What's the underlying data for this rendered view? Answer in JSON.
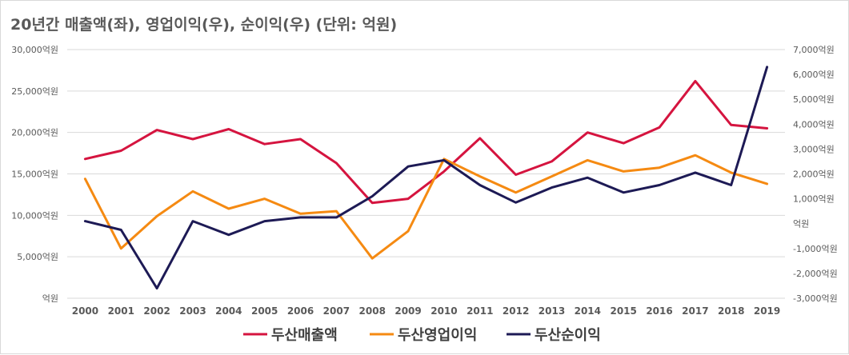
{
  "chart_data": {
    "type": "line",
    "title": "20년간 매출액(좌), 영업이익(우), 순이익(우) (단위: 억원)",
    "categories": [
      "2000",
      "2001",
      "2002",
      "2003",
      "2004",
      "2005",
      "2006",
      "2007",
      "2008",
      "2009",
      "2010",
      "2011",
      "2012",
      "2013",
      "2014",
      "2015",
      "2016",
      "2017",
      "2018",
      "2019"
    ],
    "y_left": {
      "min": 0,
      "max": 30000,
      "tick_labels": [
        "억원",
        "5,000억원",
        "10,000억원",
        "15,000억원",
        "20,000억원",
        "25,000억원",
        "30,000억원"
      ],
      "tick_values": [
        0,
        5000,
        10000,
        15000,
        20000,
        25000,
        30000
      ]
    },
    "y_right": {
      "min": -3000,
      "max": 7000,
      "tick_labels": [
        "-3,000억원",
        "-2,000억원",
        "-1,000억원",
        "억원",
        "1,000억원",
        "2,000억원",
        "3,000억원",
        "4,000억원",
        "5,000억원",
        "6,000억원",
        "7,000억원"
      ],
      "tick_values": [
        -3000,
        -2000,
        -1000,
        0,
        1000,
        2000,
        3000,
        4000,
        5000,
        6000,
        7000
      ]
    },
    "grid": true,
    "legend_position": "bottom",
    "series": [
      {
        "name": "두산매출액",
        "axis": "left",
        "color": "#d5143f",
        "values": [
          16800,
          17800,
          20300,
          19200,
          20400,
          18600,
          19200,
          16300,
          11500,
          12000,
          15300,
          19300,
          14900,
          16500,
          20000,
          18700,
          20600,
          26200,
          20900,
          20500
        ]
      },
      {
        "name": "두산영업이익",
        "axis": "right",
        "color": "#f58a12",
        "values": [
          1800,
          -1000,
          300,
          1300,
          600,
          1000,
          400,
          500,
          -1400,
          -300,
          2600,
          1900,
          1250,
          1900,
          2550,
          2100,
          2250,
          2750,
          2050,
          1600
        ]
      },
      {
        "name": "두산순이익",
        "axis": "right",
        "color": "#1d1a55",
        "values": [
          100,
          -250,
          -2600,
          100,
          -450,
          100,
          250,
          250,
          1100,
          2300,
          2550,
          1550,
          850,
          1450,
          1850,
          1250,
          1550,
          2050,
          1550,
          6300
        ]
      }
    ]
  }
}
